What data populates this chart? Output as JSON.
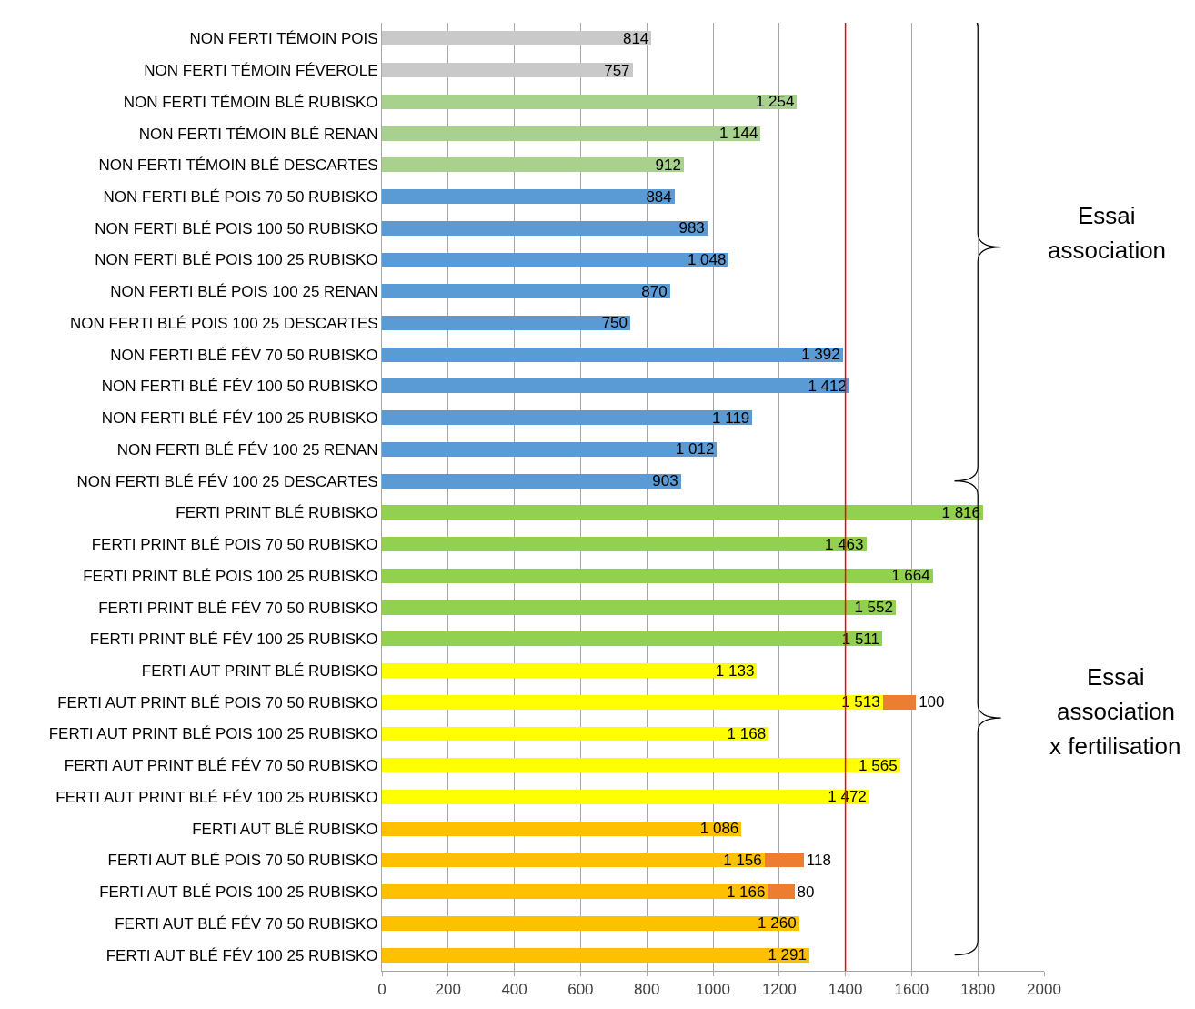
{
  "chart_data": {
    "type": "bar",
    "orientation": "horizontal",
    "stacked": true,
    "categories": [
      "NON FERTI TÉMOIN POIS",
      "NON FERTI TÉMOIN FÉVEROLE",
      "NON FERTI TÉMOIN BLÉ RUBISKO",
      "NON FERTI TÉMOIN BLÉ RENAN",
      "NON FERTI TÉMOIN BLÉ DESCARTES",
      "NON FERTI BLÉ POIS 70 50 RUBISKO",
      "NON FERTI BLÉ POIS 100 50 RUBISKO",
      "NON FERTI BLÉ POIS 100 25 RUBISKO",
      "NON FERTI BLÉ POIS 100 25 RENAN",
      "NON FERTI BLÉ POIS 100 25 DESCARTES",
      "NON FERTI BLÉ FÉV 70 50 RUBISKO",
      "NON FERTI BLÉ FÉV 100 50 RUBISKO",
      "NON FERTI BLÉ FÉV 100 25 RUBISKO",
      "NON FERTI BLÉ FÉV 100 25 RENAN",
      "NON FERTI BLÉ FÉV 100 25 DESCARTES",
      "FERTI PRINT BLÉ RUBISKO",
      "FERTI PRINT BLÉ POIS 70 50 RUBISKO",
      "FERTI PRINT BLÉ POIS 100 25 RUBISKO",
      "FERTI PRINT BLÉ FÉV 70 50 RUBISKO",
      "FERTI PRINT BLÉ FÉV 100 25 RUBISKO",
      "FERTI AUT PRINT BLÉ RUBISKO",
      "FERTI AUT PRINT BLÉ POIS 70 50 RUBISKO",
      "FERTI AUT PRINT BLÉ POIS 100 25 RUBISKO",
      "FERTI AUT PRINT BLÉ FÉV 70 50 RUBISKO",
      "FERTI AUT PRINT BLÉ FÉV 100 25 RUBISKO",
      "FERTI AUT BLÉ RUBISKO",
      "FERTI AUT BLÉ POIS 70 50 RUBISKO",
      "FERTI AUT BLÉ POIS 100 25 RUBISKO",
      "FERTI AUT BLÉ FÉV 70 50 RUBISKO",
      "FERTI AUT BLÉ FÉV 100 25 RUBISKO"
    ],
    "series": [
      {
        "colors": [
          "#c9c9c9",
          "#c9c9c9",
          "#a9d18e",
          "#a9d18e",
          "#a9d18e",
          "#5b9bd5",
          "#5b9bd5",
          "#5b9bd5",
          "#5b9bd5",
          "#5b9bd5",
          "#5b9bd5",
          "#5b9bd5",
          "#5b9bd5",
          "#5b9bd5",
          "#5b9bd5",
          "#92d050",
          "#92d050",
          "#92d050",
          "#92d050",
          "#92d050",
          "#ffff00",
          "#ffff00",
          "#ffff00",
          "#ffff00",
          "#ffff00",
          "#ffc000",
          "#ffc000",
          "#ffc000",
          "#ffc000",
          "#ffc000"
        ],
        "values": [
          814,
          757,
          1254,
          1144,
          912,
          884,
          983,
          1048,
          870,
          750,
          1392,
          1412,
          1119,
          1012,
          903,
          1816,
          1463,
          1664,
          1552,
          1511,
          1133,
          1513,
          1168,
          1565,
          1472,
          1086,
          1156,
          1166,
          1260,
          1291
        ],
        "value_labels": [
          "814",
          "757",
          "1 254",
          "1 144",
          "912",
          "884",
          "983",
          "1 048",
          "870",
          "750",
          "1 392",
          "1 412",
          "1 119",
          "1 012",
          "903",
          "1 816",
          "1 463",
          "1 664",
          "1 552",
          "1 511",
          "1 133",
          "1 513",
          "1 168",
          "1 565",
          "1 472",
          "1 086",
          "1 156",
          "1 166",
          "1 260",
          "1 291"
        ]
      },
      {
        "color": "#ed7d31",
        "values": [
          null,
          null,
          null,
          null,
          null,
          null,
          null,
          null,
          null,
          null,
          null,
          null,
          null,
          null,
          null,
          null,
          null,
          null,
          null,
          null,
          null,
          100,
          null,
          null,
          null,
          null,
          118,
          80,
          null,
          null
        ],
        "value_labels": [
          null,
          null,
          null,
          null,
          null,
          null,
          null,
          null,
          null,
          null,
          null,
          null,
          null,
          null,
          null,
          null,
          null,
          null,
          null,
          null,
          null,
          "100",
          null,
          null,
          null,
          null,
          "118",
          "80",
          null,
          null
        ]
      }
    ],
    "xlim": [
      0,
      2000
    ],
    "xticks": [
      0,
      200,
      400,
      600,
      800,
      1000,
      1200,
      1400,
      1600,
      1800,
      2000
    ],
    "grid": "x",
    "ref_lines": [
      {
        "axis": "x",
        "value": 1400,
        "color": "#ff0000"
      }
    ],
    "annotations": [
      "Essai",
      "association",
      "Essai",
      "association",
      "x fertilisation"
    ]
  }
}
